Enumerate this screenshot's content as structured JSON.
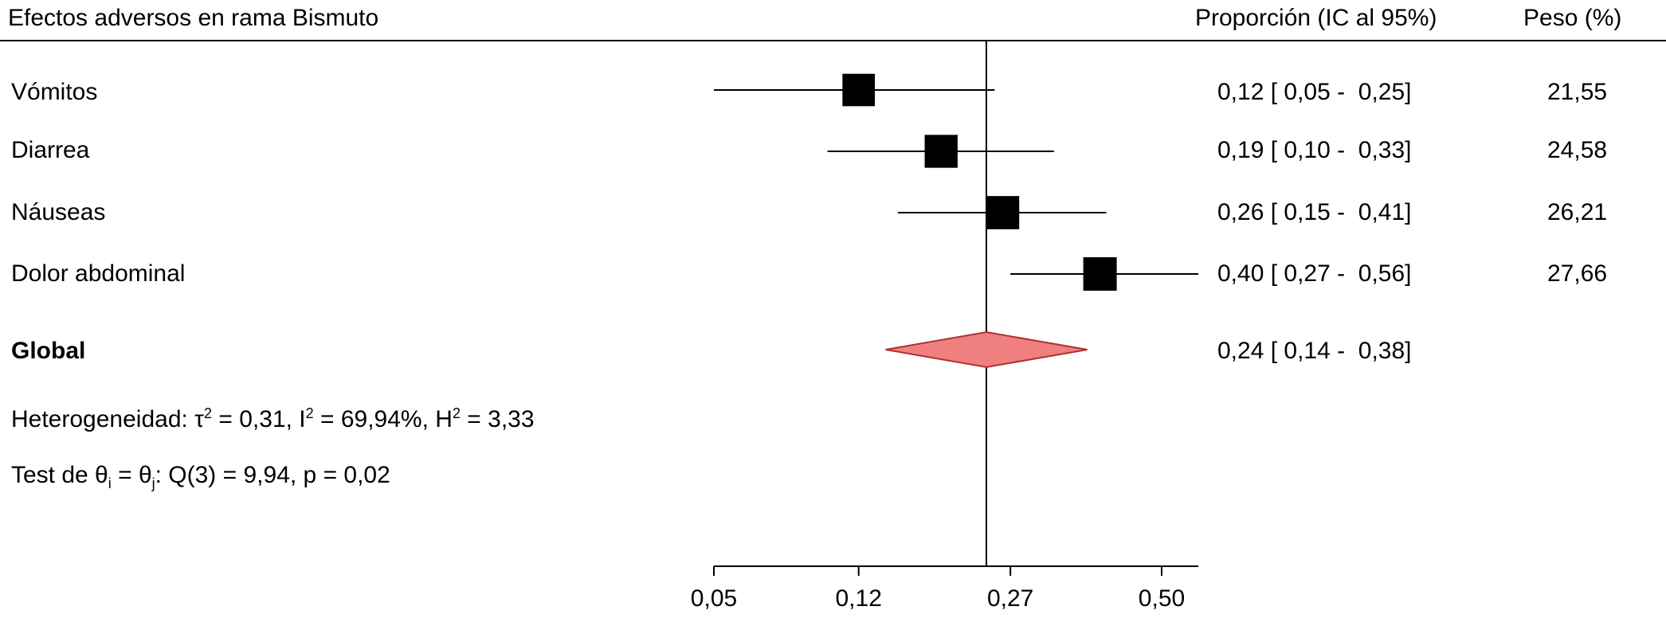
{
  "header": {
    "title": "Efectos adversos en rama Bismuto",
    "ci_header": "Proporción (IC al 95%)",
    "weight_header": "Peso (%)"
  },
  "rows": [
    {
      "label": "Vómitos",
      "ci_text": "0,12 [ 0,05 -  0,25]",
      "weight": "21,55"
    },
    {
      "label": "Diarrea",
      "ci_text": "0,19 [ 0,10 -  0,33]",
      "weight": "24,58"
    },
    {
      "label": "Náuseas",
      "ci_text": "0,26 [ 0,15 -  0,41]",
      "weight": "26,21"
    },
    {
      "label": "Dolor abdominal",
      "ci_text": "0,40 [ 0,27 -  0,56]",
      "weight": "27,66"
    }
  ],
  "overall": {
    "label": "Global",
    "ci_text": "0,24 [ 0,14 -  0,38]"
  },
  "stats": {
    "heterogeneity_prefix": "Heterogeneidad: τ",
    "heterogeneity_tau_exp": "2",
    "heterogeneity_mid": " = 0,31, I",
    "heterogeneity_i_exp": "2",
    "heterogeneity_mid2": " = 69,94%, H",
    "heterogeneity_h_exp": "2",
    "heterogeneity_end": " = 3,33",
    "test_prefix": "Test de θ",
    "test_sub_i": "i",
    "test_mid": " = θ",
    "test_sub_j": "j",
    "test_end": ": Q(3) = 9,94, p = 0,02"
  },
  "colors": {
    "diamond_fill": "#f08080",
    "diamond_stroke": "#b03030",
    "marker": "#000000"
  },
  "chart_data": {
    "type": "scatter",
    "subtype": "forest-plot",
    "title": "Efectos adversos en rama Bismuto",
    "x_scale": "logit",
    "x_ticks": [
      0.05,
      0.12,
      0.27,
      0.5
    ],
    "x_tick_labels": [
      "0,05",
      "0,12",
      "0,27",
      "0,50"
    ],
    "xlim": [
      0.05,
      0.56
    ],
    "reference_line": 0.24,
    "series": [
      {
        "category": "Vómitos",
        "estimate": 0.12,
        "lower": 0.05,
        "upper": 0.25,
        "weight": 21.55
      },
      {
        "category": "Diarrea",
        "estimate": 0.19,
        "lower": 0.1,
        "upper": 0.33,
        "weight": 24.58
      },
      {
        "category": "Náuseas",
        "estimate": 0.26,
        "lower": 0.15,
        "upper": 0.41,
        "weight": 26.21
      },
      {
        "category": "Dolor abdominal",
        "estimate": 0.4,
        "lower": 0.27,
        "upper": 0.56,
        "weight": 27.66
      }
    ],
    "overall": {
      "category": "Global",
      "estimate": 0.24,
      "lower": 0.14,
      "upper": 0.38
    }
  }
}
